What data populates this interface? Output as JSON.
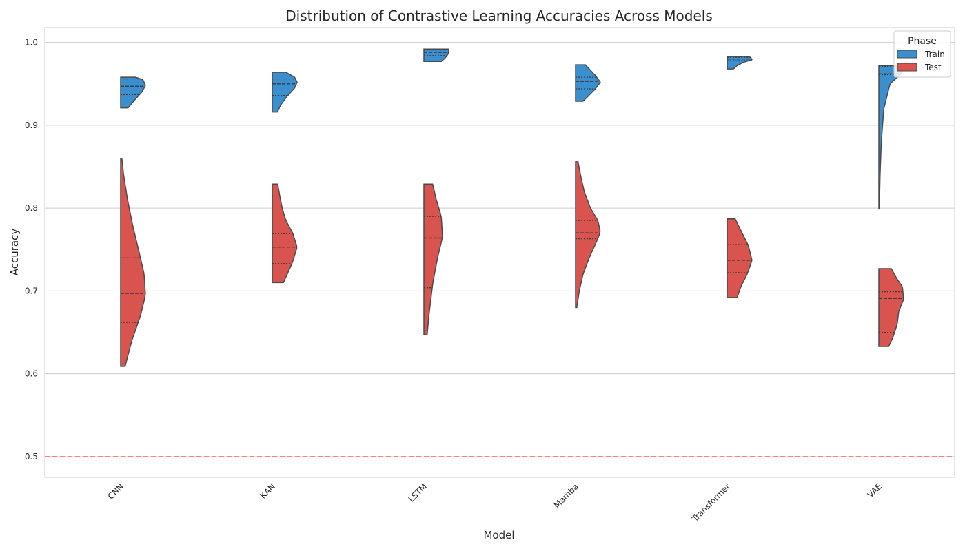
{
  "chart_data": {
    "type": "violin",
    "title": "Distribution of Contrastive Learning Accuracies Across Models",
    "xlabel": "Model",
    "ylabel": "Accuracy",
    "ylim": [
      0.475,
      1.018
    ],
    "yticks": [
      0.5,
      0.6,
      0.7,
      0.8,
      0.9,
      1.0
    ],
    "ytick_labels": [
      "0.5",
      "0.6",
      "0.7",
      "0.8",
      "0.9",
      "1.0"
    ],
    "grid": true,
    "categories": [
      "CNN",
      "KAN",
      "LSTM",
      "Mamba",
      "Transformer",
      "VAE"
    ],
    "legend": {
      "title": "Phase",
      "position": "top-right",
      "entries": [
        "Train",
        "Test"
      ]
    },
    "reference_line": {
      "y": 0.5,
      "color": "#ff6b6b",
      "style": "dashed"
    },
    "series": [
      {
        "name": "Train",
        "side": "right",
        "color": "#3b8fcf",
        "violins": [
          {
            "min": 0.921,
            "max": 0.958,
            "q1": 0.937,
            "median": 0.947,
            "q3": 0.956,
            "profile": [
              [
                0.921,
                0.3
              ],
              [
                0.93,
                0.55
              ],
              [
                0.94,
                0.85
              ],
              [
                0.948,
                1.0
              ],
              [
                0.955,
                0.9
              ],
              [
                0.958,
                0.6
              ]
            ]
          },
          {
            "min": 0.916,
            "max": 0.964,
            "q1": 0.936,
            "median": 0.95,
            "q3": 0.956,
            "profile": [
              [
                0.916,
                0.2
              ],
              [
                0.925,
                0.35
              ],
              [
                0.935,
                0.6
              ],
              [
                0.945,
                0.9
              ],
              [
                0.952,
                1.0
              ],
              [
                0.958,
                0.9
              ],
              [
                0.964,
                0.55
              ]
            ]
          },
          {
            "min": 0.977,
            "max": 0.992,
            "q1": 0.984,
            "median": 0.988,
            "q3": 0.991,
            "profile": [
              [
                0.977,
                0.7
              ],
              [
                0.981,
                0.85
              ],
              [
                0.985,
                0.95
              ],
              [
                0.988,
                1.0
              ],
              [
                0.992,
                1.0
              ]
            ]
          },
          {
            "min": 0.929,
            "max": 0.973,
            "q1": 0.944,
            "median": 0.953,
            "q3": 0.958,
            "profile": [
              [
                0.929,
                0.3
              ],
              [
                0.935,
                0.5
              ],
              [
                0.944,
                0.8
              ],
              [
                0.952,
                1.0
              ],
              [
                0.96,
                0.8
              ],
              [
                0.968,
                0.55
              ],
              [
                0.973,
                0.4
              ]
            ]
          },
          {
            "min": 0.968,
            "max": 0.983,
            "q1": 0.978,
            "median": 0.98,
            "q3": 0.982,
            "profile": [
              [
                0.968,
                0.25
              ],
              [
                0.972,
                0.4
              ],
              [
                0.976,
                0.65
              ],
              [
                0.979,
                1.0
              ],
              [
                0.982,
                0.95
              ],
              [
                0.983,
                0.8
              ]
            ]
          },
          {
            "min": 0.799,
            "max": 0.972,
            "q1": 0.961,
            "median": 0.962,
            "q3": 0.971,
            "profile": [
              [
                0.799,
                0.02
              ],
              [
                0.84,
                0.05
              ],
              [
                0.88,
                0.1
              ],
              [
                0.92,
                0.2
              ],
              [
                0.95,
                0.45
              ],
              [
                0.962,
                0.9
              ],
              [
                0.968,
                1.0
              ],
              [
                0.972,
                0.85
              ]
            ]
          }
        ]
      },
      {
        "name": "Test",
        "side": "right",
        "color": "#d9534f",
        "violins": [
          {
            "min": 0.609,
            "max": 0.86,
            "q1": 0.662,
            "median": 0.697,
            "q3": 0.74,
            "profile": [
              [
                0.609,
                0.18
              ],
              [
                0.64,
                0.45
              ],
              [
                0.67,
                0.8
              ],
              [
                0.695,
                1.0
              ],
              [
                0.72,
                0.95
              ],
              [
                0.75,
                0.72
              ],
              [
                0.78,
                0.48
              ],
              [
                0.81,
                0.28
              ],
              [
                0.84,
                0.12
              ],
              [
                0.86,
                0.05
              ]
            ]
          },
          {
            "min": 0.71,
            "max": 0.829,
            "q1": 0.733,
            "median": 0.753,
            "q3": 0.769,
            "profile": [
              [
                0.71,
                0.45
              ],
              [
                0.72,
                0.6
              ],
              [
                0.735,
                0.82
              ],
              [
                0.753,
                1.0
              ],
              [
                0.77,
                0.82
              ],
              [
                0.785,
                0.55
              ],
              [
                0.8,
                0.4
              ],
              [
                0.815,
                0.3
              ],
              [
                0.829,
                0.22
              ]
            ]
          },
          {
            "min": 0.647,
            "max": 0.829,
            "q1": 0.704,
            "median": 0.764,
            "q3": 0.79,
            "profile": [
              [
                0.647,
                0.13
              ],
              [
                0.67,
                0.2
              ],
              [
                0.69,
                0.28
              ],
              [
                0.71,
                0.36
              ],
              [
                0.74,
                0.55
              ],
              [
                0.765,
                0.75
              ],
              [
                0.79,
                0.7
              ],
              [
                0.81,
                0.5
              ],
              [
                0.829,
                0.35
              ]
            ]
          },
          {
            "min": 0.68,
            "max": 0.856,
            "q1": 0.763,
            "median": 0.77,
            "q3": 0.785,
            "profile": [
              [
                0.68,
                0.05
              ],
              [
                0.7,
                0.15
              ],
              [
                0.72,
                0.3
              ],
              [
                0.74,
                0.55
              ],
              [
                0.76,
                0.85
              ],
              [
                0.771,
                1.0
              ],
              [
                0.785,
                0.9
              ],
              [
                0.8,
                0.6
              ],
              [
                0.82,
                0.35
              ],
              [
                0.84,
                0.2
              ],
              [
                0.856,
                0.1
              ]
            ]
          },
          {
            "min": 0.692,
            "max": 0.787,
            "q1": 0.722,
            "median": 0.737,
            "q3": 0.756,
            "profile": [
              [
                0.692,
                0.4
              ],
              [
                0.705,
                0.55
              ],
              [
                0.72,
                0.8
              ],
              [
                0.737,
                1.0
              ],
              [
                0.755,
                0.85
              ],
              [
                0.77,
                0.6
              ],
              [
                0.787,
                0.32
              ]
            ]
          },
          {
            "min": 0.633,
            "max": 0.727,
            "q1": 0.65,
            "median": 0.691,
            "q3": 0.699,
            "profile": [
              [
                0.633,
                0.4
              ],
              [
                0.645,
                0.58
              ],
              [
                0.66,
                0.74
              ],
              [
                0.675,
                0.8
              ],
              [
                0.69,
                1.0
              ],
              [
                0.705,
                0.95
              ],
              [
                0.715,
                0.72
              ],
              [
                0.727,
                0.5
              ]
            ]
          }
        ]
      }
    ]
  }
}
